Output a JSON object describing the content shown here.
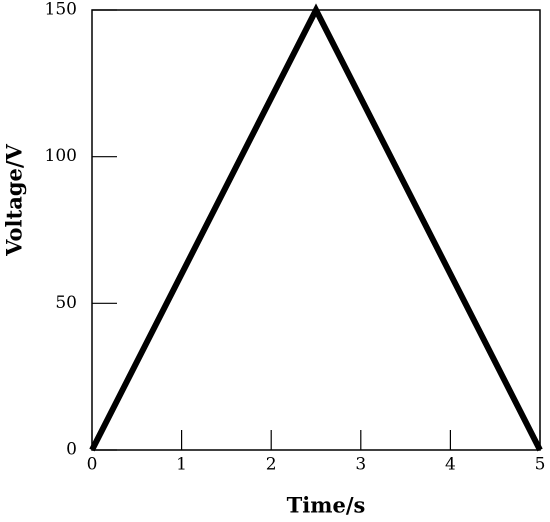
{
  "chart_data": {
    "type": "line",
    "x_label": "Time/s",
    "y_label": "Voltage/V",
    "x": [
      0,
      2.5,
      5
    ],
    "series": [
      {
        "color": "#000000",
        "values": [
          0,
          150,
          0
        ]
      }
    ],
    "xlim": [
      0,
      5
    ],
    "xticks": [
      0,
      1,
      2,
      3,
      4,
      5
    ],
    "ylim": [
      0,
      150
    ],
    "yticks": [
      0,
      50,
      100,
      150
    ]
  }
}
